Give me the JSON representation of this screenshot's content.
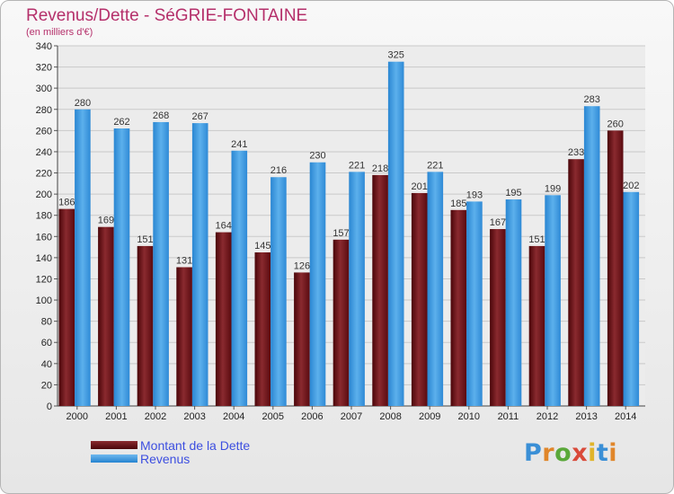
{
  "title": "Revenus/Dette - SéGRIE-FONTAINE",
  "subtitle": "(en milliers d'€)",
  "logo": "Proxiti",
  "chart_data": {
    "type": "bar",
    "title": "Revenus/Dette - SéGRIE-FONTAINE",
    "subtitle": "(en milliers d'€)",
    "xlabel": "",
    "ylabel": "",
    "categories": [
      "2000",
      "2001",
      "2002",
      "2003",
      "2004",
      "2005",
      "2006",
      "2007",
      "2008",
      "2009",
      "2010",
      "2011",
      "2012",
      "2013",
      "2014"
    ],
    "series": [
      {
        "name": "Montant de la Dette",
        "color": "#6e0f14",
        "values": [
          186,
          169,
          151,
          131,
          164,
          145,
          126,
          157,
          218,
          201,
          185,
          167,
          151,
          233,
          260
        ]
      },
      {
        "name": "Revenus",
        "color": "#3a99e0",
        "values": [
          280,
          262,
          268,
          267,
          241,
          216,
          230,
          221,
          325,
          221,
          193,
          195,
          199,
          283,
          202
        ]
      }
    ],
    "ylim": [
      0,
      340
    ],
    "yticks": [
      0,
      20,
      40,
      60,
      80,
      100,
      120,
      140,
      160,
      180,
      200,
      220,
      240,
      260,
      280,
      300,
      320,
      340
    ],
    "grid": true,
    "legend_position": "bottom-left"
  }
}
